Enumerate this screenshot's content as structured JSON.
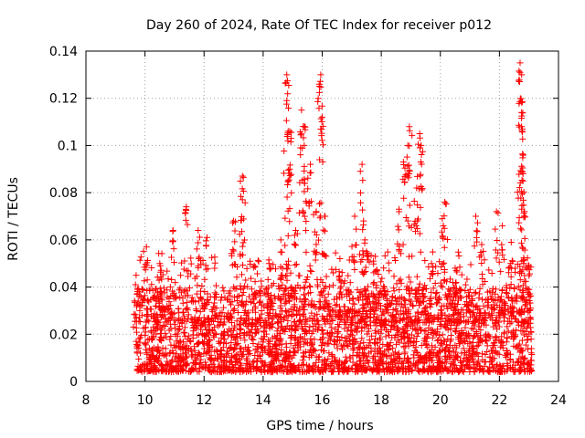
{
  "chart_data": {
    "type": "scatter",
    "title": "Day 260 of 2024, Rate Of TEC Index for receiver p012",
    "xlabel": "GPS time / hours",
    "ylabel": "ROTI / TECUs",
    "xlim": [
      8,
      24
    ],
    "ylim": [
      0,
      0.14
    ],
    "xticks": [
      8,
      10,
      12,
      14,
      16,
      18,
      20,
      22,
      24
    ],
    "xtick_labels": [
      "8",
      "10",
      "12",
      "14",
      "16",
      "18",
      "20",
      "22",
      "24"
    ],
    "yticks": [
      0,
      0.02,
      0.04,
      0.06,
      0.08,
      0.1,
      0.12,
      0.14
    ],
    "ytick_labels": [
      "0",
      "0.02",
      "0.04",
      "0.06",
      "0.08",
      "0.1",
      "0.12",
      "0.14"
    ],
    "grid": true,
    "marker": "+",
    "color": "#ff0000",
    "series": [
      {
        "name": "ROTI",
        "x_range": [
          9.7,
          23.1
        ],
        "base_band": [
          0.004,
          0.035
        ],
        "notable_points": [
          {
            "x": 9.7,
            "y": 0.045
          },
          {
            "x": 10.05,
            "y": 0.057
          },
          {
            "x": 10.5,
            "y": 0.05
          },
          {
            "x": 10.95,
            "y": 0.064
          },
          {
            "x": 11.4,
            "y": 0.074
          },
          {
            "x": 11.8,
            "y": 0.064
          },
          {
            "x": 12.1,
            "y": 0.061
          },
          {
            "x": 13.0,
            "y": 0.068
          },
          {
            "x": 13.3,
            "y": 0.087
          },
          {
            "x": 13.3,
            "y": 0.077
          },
          {
            "x": 13.7,
            "y": 0.049
          },
          {
            "x": 14.2,
            "y": 0.05
          },
          {
            "x": 14.6,
            "y": 0.06
          },
          {
            "x": 14.8,
            "y": 0.13
          },
          {
            "x": 14.8,
            "y": 0.119
          },
          {
            "x": 14.9,
            "y": 0.106
          },
          {
            "x": 14.9,
            "y": 0.09
          },
          {
            "x": 15.1,
            "y": 0.064
          },
          {
            "x": 15.3,
            "y": 0.115
          },
          {
            "x": 15.4,
            "y": 0.108
          },
          {
            "x": 15.4,
            "y": 0.084
          },
          {
            "x": 15.6,
            "y": 0.092
          },
          {
            "x": 15.8,
            "y": 0.072
          },
          {
            "x": 15.9,
            "y": 0.126
          },
          {
            "x": 15.95,
            "y": 0.13
          },
          {
            "x": 16.0,
            "y": 0.112
          },
          {
            "x": 16.1,
            "y": 0.07
          },
          {
            "x": 16.6,
            "y": 0.052
          },
          {
            "x": 17.1,
            "y": 0.07
          },
          {
            "x": 17.35,
            "y": 0.092
          },
          {
            "x": 17.4,
            "y": 0.068
          },
          {
            "x": 17.5,
            "y": 0.055
          },
          {
            "x": 17.8,
            "y": 0.053
          },
          {
            "x": 18.1,
            "y": 0.04
          },
          {
            "x": 18.6,
            "y": 0.073
          },
          {
            "x": 18.75,
            "y": 0.093
          },
          {
            "x": 18.9,
            "y": 0.1
          },
          {
            "x": 18.95,
            "y": 0.108
          },
          {
            "x": 19.3,
            "y": 0.105
          },
          {
            "x": 19.35,
            "y": 0.1
          },
          {
            "x": 19.2,
            "y": 0.082
          },
          {
            "x": 19.7,
            "y": 0.05
          },
          {
            "x": 20.15,
            "y": 0.076
          },
          {
            "x": 20.1,
            "y": 0.066
          },
          {
            "x": 20.5,
            "y": 0.048
          },
          {
            "x": 21.2,
            "y": 0.07
          },
          {
            "x": 21.4,
            "y": 0.058
          },
          {
            "x": 21.9,
            "y": 0.072
          },
          {
            "x": 22.1,
            "y": 0.066
          },
          {
            "x": 22.4,
            "y": 0.059
          },
          {
            "x": 22.7,
            "y": 0.135
          },
          {
            "x": 22.7,
            "y": 0.131
          },
          {
            "x": 22.75,
            "y": 0.114
          },
          {
            "x": 22.75,
            "y": 0.108
          },
          {
            "x": 22.8,
            "y": 0.096
          },
          {
            "x": 22.8,
            "y": 0.088
          },
          {
            "x": 22.85,
            "y": 0.072
          },
          {
            "x": 23.0,
            "y": 0.049
          }
        ]
      }
    ]
  }
}
